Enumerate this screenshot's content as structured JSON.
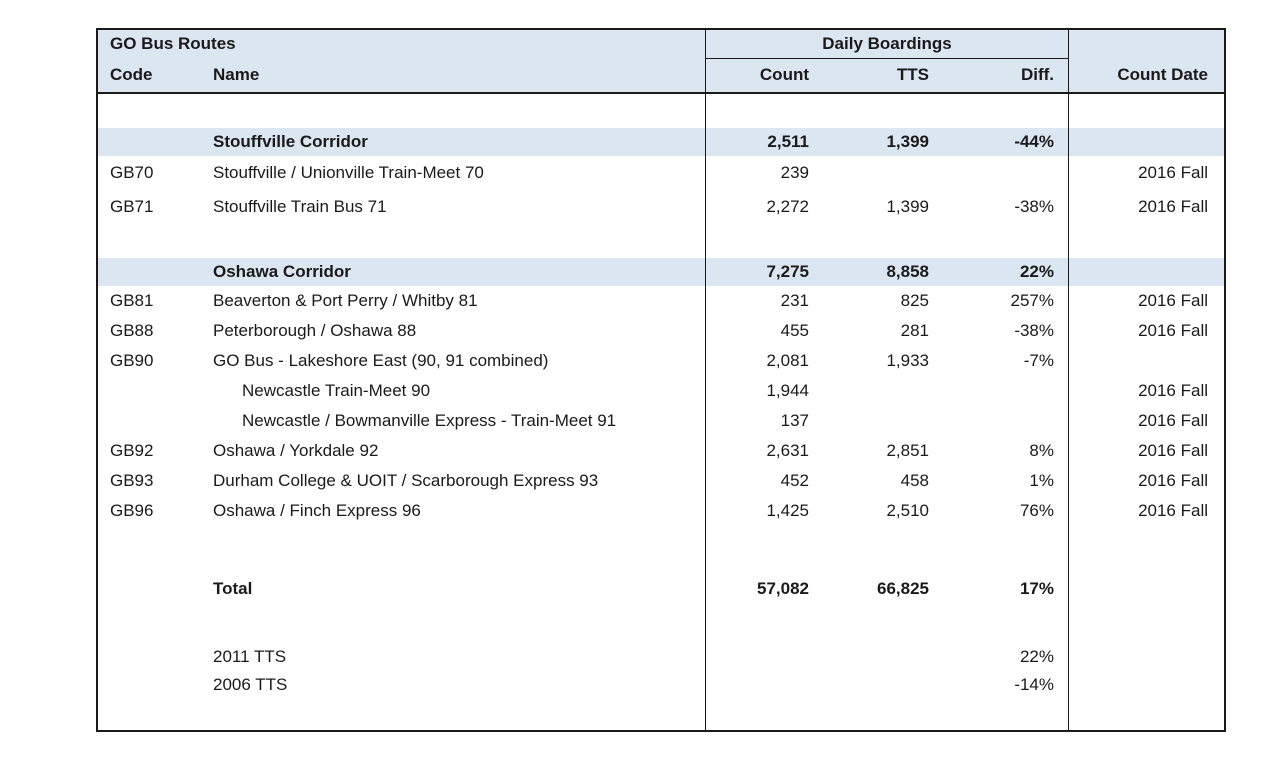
{
  "colors": {
    "highlight": "#dce6f1",
    "border": "#1a1a1a",
    "text": "#1a1a1a"
  },
  "table": {
    "header": {
      "group_left": "GO Bus Routes",
      "group_mid": "Daily Boardings",
      "code": "Code",
      "name": "Name",
      "count": "Count",
      "tts": "TTS",
      "diff": "Diff.",
      "date": "Count Date"
    },
    "rows": [
      {
        "kind": "spacer",
        "code": "",
        "name": "",
        "count": "",
        "tts": "",
        "diff": "",
        "date": ""
      },
      {
        "kind": "section",
        "code": "",
        "name": "Stouffville Corridor",
        "count": "2,511",
        "tts": "1,399",
        "diff": "-44%",
        "date": ""
      },
      {
        "kind": "route_tall",
        "code": "GB70",
        "name": "Stouffville / Unionville Train-Meet 70",
        "count": "239",
        "tts": "",
        "diff": "",
        "date": "2016 Fall"
      },
      {
        "kind": "route_tall",
        "code": "GB71",
        "name": "Stouffville Train Bus 71",
        "count": "2,272",
        "tts": "1,399",
        "diff": "-38%",
        "date": "2016 Fall"
      },
      {
        "kind": "spacer",
        "code": "",
        "name": "",
        "count": "",
        "tts": "",
        "diff": "",
        "date": ""
      },
      {
        "kind": "section",
        "code": "",
        "name": "Oshawa Corridor",
        "count": "7,275",
        "tts": "8,858",
        "diff": "22%",
        "date": ""
      },
      {
        "kind": "route",
        "code": "GB81",
        "name": "Beaverton & Port Perry / Whitby 81",
        "count": "231",
        "tts": "825",
        "diff": "257%",
        "date": "2016 Fall"
      },
      {
        "kind": "route",
        "code": "GB88",
        "name": "Peterborough / Oshawa 88",
        "count": "455",
        "tts": "281",
        "diff": "-38%",
        "date": "2016 Fall"
      },
      {
        "kind": "route",
        "code": "GB90",
        "name": "GO Bus - Lakeshore East (90, 91 combined)",
        "count": "2,081",
        "tts": "1,933",
        "diff": "-7%",
        "date": ""
      },
      {
        "kind": "sub",
        "code": "",
        "name": "Newcastle Train-Meet 90",
        "count": "1,944",
        "tts": "",
        "diff": "",
        "date": "2016 Fall"
      },
      {
        "kind": "sub",
        "code": "",
        "name": "Newcastle / Bowmanville Express - Train-Meet 91",
        "count": "137",
        "tts": "",
        "diff": "",
        "date": "2016 Fall"
      },
      {
        "kind": "route",
        "code": "GB92",
        "name": "Oshawa / Yorkdale 92",
        "count": "2,631",
        "tts": "2,851",
        "diff": "8%",
        "date": "2016 Fall"
      },
      {
        "kind": "route",
        "code": "GB93",
        "name": "Durham College & UOIT / Scarborough Express 93",
        "count": "452",
        "tts": "458",
        "diff": "1%",
        "date": "2016 Fall"
      },
      {
        "kind": "route",
        "code": "GB96",
        "name": "Oshawa / Finch Express 96",
        "count": "1,425",
        "tts": "2,510",
        "diff": "76%",
        "date": "2016 Fall"
      },
      {
        "kind": "spacer_lg",
        "code": "",
        "name": "",
        "count": "",
        "tts": "",
        "diff": "",
        "date": ""
      },
      {
        "kind": "total",
        "code": "",
        "name": "Total",
        "count": "57,082",
        "tts": "66,825",
        "diff": "17%",
        "date": ""
      },
      {
        "kind": "spacer",
        "code": "",
        "name": "",
        "count": "",
        "tts": "",
        "diff": "",
        "date": ""
      },
      {
        "kind": "note",
        "code": "",
        "name": "2011 TTS",
        "count": "",
        "tts": "",
        "diff": "22%",
        "date": ""
      },
      {
        "kind": "note",
        "code": "",
        "name": "2006 TTS",
        "count": "",
        "tts": "",
        "diff": "-14%",
        "date": ""
      },
      {
        "kind": "fill",
        "code": "",
        "name": "",
        "count": "",
        "tts": "",
        "diff": "",
        "date": ""
      }
    ]
  },
  "chart_data": {
    "type": "table",
    "title": "GO Bus Routes — Daily Boardings",
    "columns": [
      "Code",
      "Name",
      "Count",
      "TTS",
      "Diff.",
      "Count Date"
    ],
    "sections": [
      {
        "name": "Stouffville Corridor",
        "count": 2511,
        "tts": 1399,
        "diff_pct": -44,
        "routes": [
          {
            "code": "GB70",
            "name": "Stouffville / Unionville Train-Meet 70",
            "count": 239,
            "tts": null,
            "diff_pct": null,
            "count_date": "2016 Fall"
          },
          {
            "code": "GB71",
            "name": "Stouffville Train Bus 71",
            "count": 2272,
            "tts": 1399,
            "diff_pct": -38,
            "count_date": "2016 Fall"
          }
        ]
      },
      {
        "name": "Oshawa Corridor",
        "count": 7275,
        "tts": 8858,
        "diff_pct": 22,
        "routes": [
          {
            "code": "GB81",
            "name": "Beaverton & Port Perry / Whitby 81",
            "count": 231,
            "tts": 825,
            "diff_pct": 257,
            "count_date": "2016 Fall"
          },
          {
            "code": "GB88",
            "name": "Peterborough / Oshawa 88",
            "count": 455,
            "tts": 281,
            "diff_pct": -38,
            "count_date": "2016 Fall"
          },
          {
            "code": "GB90",
            "name": "GO Bus - Lakeshore East (90, 91 combined)",
            "count": 2081,
            "tts": 1933,
            "diff_pct": -7,
            "count_date": null,
            "subroutes": [
              {
                "name": "Newcastle Train-Meet 90",
                "count": 1944,
                "count_date": "2016 Fall"
              },
              {
                "name": "Newcastle / Bowmanville Express - Train-Meet 91",
                "count": 137,
                "count_date": "2016 Fall"
              }
            ]
          },
          {
            "code": "GB92",
            "name": "Oshawa / Yorkdale 92",
            "count": 2631,
            "tts": 2851,
            "diff_pct": 8,
            "count_date": "2016 Fall"
          },
          {
            "code": "GB93",
            "name": "Durham College & UOIT / Scarborough Express 93",
            "count": 452,
            "tts": 458,
            "diff_pct": 1,
            "count_date": "2016 Fall"
          },
          {
            "code": "GB96",
            "name": "Oshawa / Finch Express 96",
            "count": 1425,
            "tts": 2510,
            "diff_pct": 76,
            "count_date": "2016 Fall"
          }
        ]
      }
    ],
    "total": {
      "name": "Total",
      "count": 57082,
      "tts": 66825,
      "diff_pct": 17
    },
    "notes": [
      {
        "name": "2011 TTS",
        "diff_pct": 22
      },
      {
        "name": "2006 TTS",
        "diff_pct": -14
      }
    ]
  }
}
